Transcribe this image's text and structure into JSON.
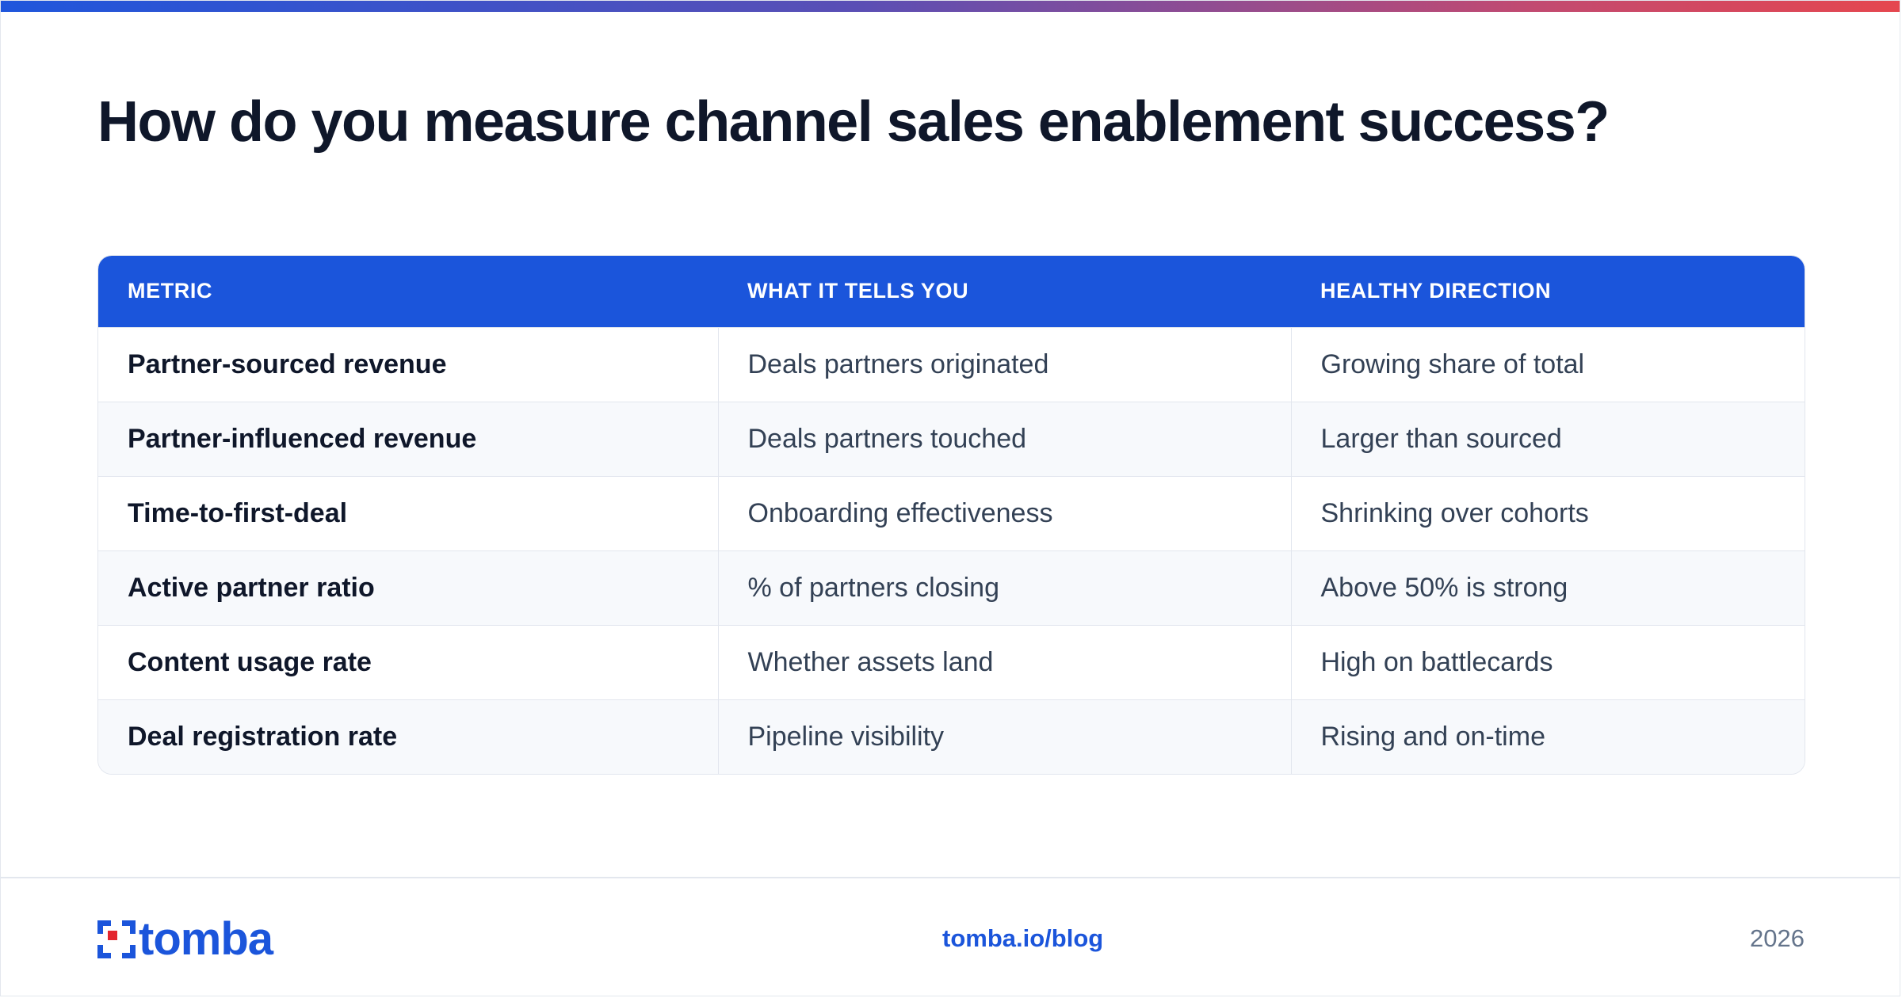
{
  "header": {
    "title": "How do you measure channel sales enablement success?"
  },
  "table": {
    "columns": [
      "METRIC",
      "WHAT IT TELLS YOU",
      "HEALTHY DIRECTION"
    ],
    "rows": [
      [
        "Partner-sourced revenue",
        "Deals partners originated",
        "Growing share of total"
      ],
      [
        "Partner-influenced revenue",
        "Deals partners touched",
        "Larger than sourced"
      ],
      [
        "Time-to-first-deal",
        "Onboarding effectiveness",
        "Shrinking over cohorts"
      ],
      [
        "Active partner ratio",
        "% of partners closing",
        "Above 50% is strong"
      ],
      [
        "Content usage rate",
        "Whether assets land",
        "High on battlecards"
      ],
      [
        "Deal registration rate",
        "Pipeline visibility",
        "Rising and on-time"
      ]
    ]
  },
  "footer": {
    "logo_text": "tomba",
    "link": "tomba.io/blog",
    "year": "2026"
  },
  "colors": {
    "accent": "#1b55db",
    "title": "#0f172a",
    "body_text": "#334155",
    "logo_red": "#e3262f"
  },
  "icons": {
    "logo_mark": "tomba-logo-icon"
  }
}
